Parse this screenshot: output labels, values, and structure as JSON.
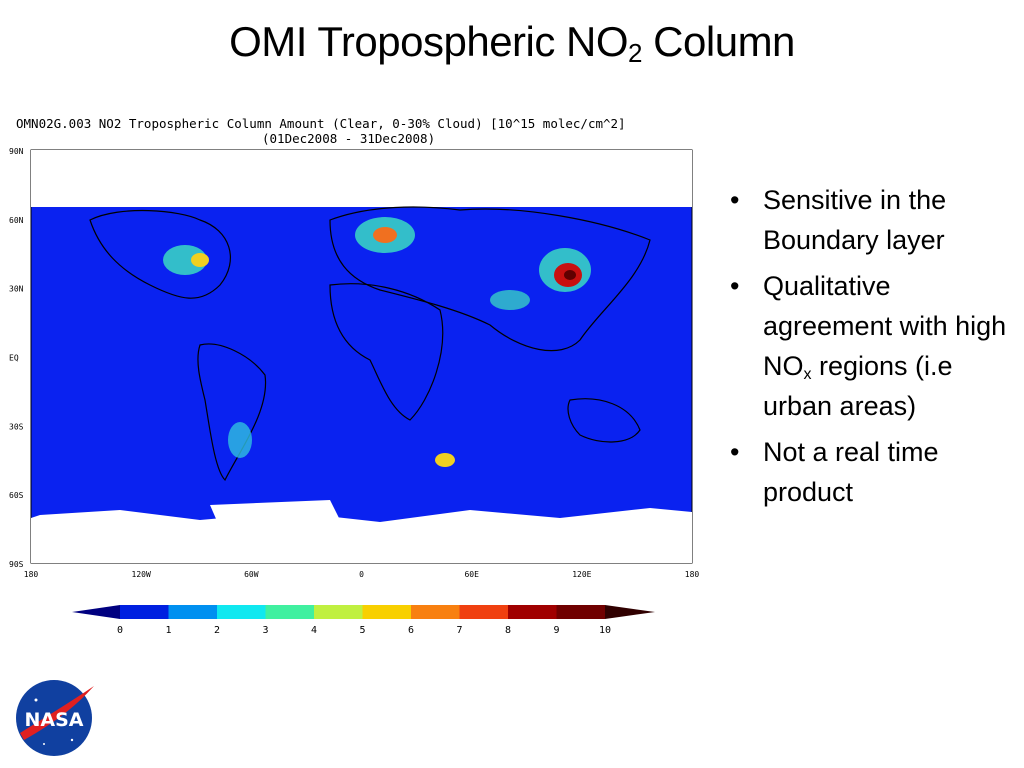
{
  "title": {
    "text": "OMI Tropospheric NO",
    "subscript": "2",
    "suffix": " Column"
  },
  "map": {
    "header": [
      "OMN02G.003 NO2 Tropospheric Column Amount (Clear, 0-30% Cloud) [10^15 molec/cm^2]",
      "(01Dec2008 - 31Dec2008)"
    ],
    "lat_labels": [
      "90N",
      "60N",
      "30N",
      "EQ",
      "30S",
      "60S",
      "90S"
    ],
    "lon_labels": [
      "180",
      "120W",
      "60W",
      "0",
      "60E",
      "120E",
      "180"
    ],
    "colorbar_ticks": [
      0,
      1,
      2,
      3,
      4,
      5,
      6,
      7,
      8,
      9,
      10
    ]
  },
  "bullets": [
    {
      "text": "Sensitive in the Boundary layer"
    },
    {
      "text": "Qualitative agreement with high NO",
      "subscript": "x",
      "suffix": " regions (i.e urban areas)"
    },
    {
      "text": "Not a real time product"
    }
  ],
  "logo": "NASA"
}
